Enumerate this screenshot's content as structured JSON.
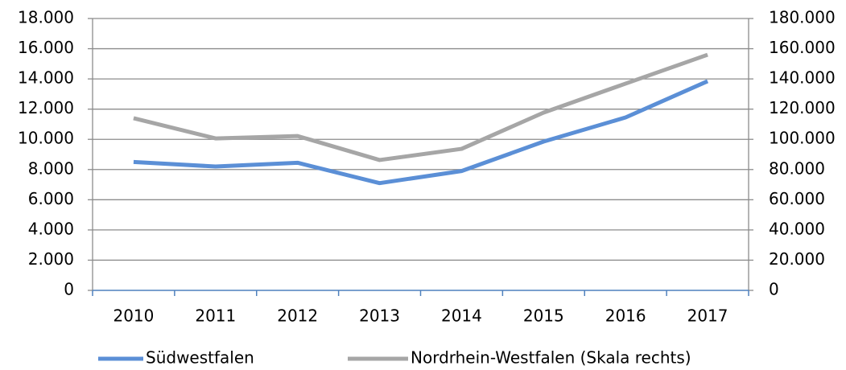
{
  "chart_data": {
    "type": "line",
    "categories": [
      "2010",
      "2011",
      "2012",
      "2013",
      "2014",
      "2015",
      "2016",
      "2017"
    ],
    "series": [
      {
        "name": "Südwestfalen",
        "color": "#5b8fd6",
        "values": [
          8500,
          8200,
          8450,
          7100,
          7900,
          9850,
          11450,
          13850
        ]
      },
      {
        "name": "Nordrhein-Westfalen (Skala rechts)",
        "color": "#a6a6a6",
        "axis": "y2",
        "values": [
          114000,
          100600,
          102200,
          86300,
          93700,
          117700,
          136900,
          156000
        ]
      }
    ],
    "ylim": [
      0,
      18000
    ],
    "yticks": [
      0,
      {
        "value": 2000,
        "label": "2.000"
      },
      {
        "value": 4000,
        "label": "4.000"
      },
      {
        "value": 6000,
        "label": "6.000"
      },
      {
        "value": 8000,
        "label": "8.000"
      },
      {
        "value": 10000,
        "label": "10.000"
      },
      {
        "value": 12000,
        "label": "12.000"
      },
      {
        "value": 14000,
        "label": "14.000"
      },
      {
        "value": 16000,
        "label": "16.000"
      },
      {
        "value": 18000,
        "label": "18.000"
      }
    ],
    "y2lim": [
      0,
      180000
    ],
    "y2ticks": [
      0,
      {
        "value": 20000,
        "label": "20.000"
      },
      {
        "value": 40000,
        "label": "40.000"
      },
      {
        "value": 60000,
        "label": "60.000"
      },
      {
        "value": 80000,
        "label": "80.000"
      },
      {
        "value": 100000,
        "label": "100.000"
      },
      {
        "value": 120000,
        "label": "120.000"
      },
      {
        "value": 140000,
        "label": "140.000"
      },
      {
        "value": 160000,
        "label": "160.000"
      },
      {
        "value": 180000,
        "label": "180.000"
      }
    ],
    "grid": true,
    "legend": "bottom"
  }
}
